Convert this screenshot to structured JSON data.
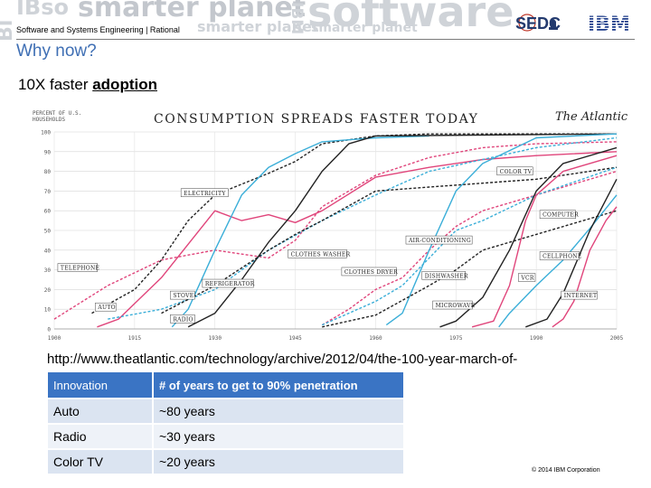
{
  "header": {
    "watermark": [
      "smarter planet",
      "software",
      "IBM"
    ],
    "division": "Software and Systems Engineering | Rational",
    "sedc_logo": "SEDC",
    "ibm_logo": "IBM"
  },
  "slide": {
    "title": "Why now?",
    "subtitle_prefix": "10X faster ",
    "subtitle_emphasis": "adoption",
    "url": "http://www.theatlantic.com/technology/archive/2012/04/the-100-year-march-of-"
  },
  "table": {
    "headers": [
      "Innovation",
      "# of years to get to 90% penetration"
    ],
    "rows": [
      [
        "Auto",
        "~80 years"
      ],
      [
        "Radio",
        "~30 years"
      ],
      [
        "Color TV",
        "~20 years"
      ]
    ]
  },
  "footer": {
    "copyright": "© 2014 IBM Corporation"
  },
  "chart_data": {
    "type": "line",
    "title": "CONSUMPTION SPREADS FASTER TODAY",
    "source_logo": "The Atlantic",
    "ylabel": "PERCENT OF U.S. HOUSEHOLDS",
    "xlim": [
      1900,
      2005
    ],
    "ylim": [
      0,
      100
    ],
    "x_ticks": [
      1900,
      1915,
      1930,
      1945,
      1960,
      1975,
      1990,
      2005
    ],
    "y_ticks": [
      0,
      10,
      20,
      30,
      40,
      50,
      60,
      70,
      80,
      90,
      100
    ],
    "grid": true,
    "series": [
      {
        "name": "TELEPHONE",
        "color": "#e0457b",
        "dash": "3,2",
        "x": [
          1900,
          1910,
          1920,
          1930,
          1940,
          1945,
          1950,
          1960,
          1970,
          1980,
          1990,
          2005
        ],
        "y": [
          5,
          22,
          35,
          40,
          36,
          45,
          62,
          78,
          87,
          92,
          94,
          95
        ]
      },
      {
        "name": "ELECTRICITY",
        "color": "#222222",
        "dash": "3,2",
        "x": [
          1907,
          1915,
          1920,
          1925,
          1930,
          1940,
          1945,
          1950,
          1960,
          1970,
          2005
        ],
        "y": [
          8,
          20,
          35,
          55,
          68,
          79,
          85,
          94,
          98,
          99,
          99
        ]
      },
      {
        "name": "AUTO",
        "color": "#e0457b",
        "dash": "",
        "x": [
          1908,
          1912,
          1920,
          1930,
          1935,
          1940,
          1945,
          1950,
          1960,
          1970,
          1980,
          1990,
          2005
        ],
        "y": [
          1,
          5,
          26,
          60,
          55,
          58,
          54,
          60,
          77,
          82,
          86,
          88,
          90
        ]
      },
      {
        "name": "RADIO",
        "color": "#3aaed8",
        "dash": "",
        "x": [
          1922,
          1925,
          1930,
          1935,
          1940,
          1945,
          1950,
          1960,
          1970
        ],
        "y": [
          1,
          10,
          40,
          68,
          82,
          89,
          95,
          97,
          98
        ]
      },
      {
        "name": "STOVE",
        "color": "#3aaed8",
        "dash": "3,2",
        "x": [
          1910,
          1920,
          1930,
          1940,
          1950,
          1960,
          1970,
          1990,
          2005
        ],
        "y": [
          5,
          10,
          20,
          40,
          55,
          68,
          80,
          92,
          97
        ]
      },
      {
        "name": "REFRIGERATOR",
        "color": "#222222",
        "dash": "",
        "x": [
          1925,
          1930,
          1935,
          1940,
          1945,
          1950,
          1955,
          1960,
          2005
        ],
        "y": [
          1,
          8,
          25,
          44,
          60,
          80,
          94,
          98,
          99
        ]
      },
      {
        "name": "CLOTHES WASHER",
        "color": "#222222",
        "dash": "3,2",
        "x": [
          1920,
          1930,
          1940,
          1945,
          1950,
          1960,
          1970,
          1980,
          1990,
          2005
        ],
        "y": [
          8,
          22,
          40,
          48,
          55,
          70,
          72,
          74,
          76,
          82
        ]
      },
      {
        "name": "CLOTHES DRYER",
        "color": "#e0457b",
        "dash": "3,2",
        "x": [
          1950,
          1955,
          1960,
          1965,
          1970,
          1975,
          1980,
          1990,
          2005
        ],
        "y": [
          2,
          10,
          20,
          26,
          40,
          52,
          60,
          68,
          80
        ]
      },
      {
        "name": "AIR-CONDITIONING",
        "color": "#3aaed8",
        "dash": "3,2",
        "x": [
          1950,
          1955,
          1960,
          1965,
          1970,
          1975,
          1980,
          1990,
          2005
        ],
        "y": [
          2,
          8,
          14,
          22,
          36,
          50,
          55,
          68,
          82
        ]
      },
      {
        "name": "COLOR TV",
        "color": "#3aaed8",
        "dash": "",
        "x": [
          1962,
          1965,
          1970,
          1975,
          1980,
          1990,
          2005
        ],
        "y": [
          2,
          8,
          40,
          70,
          84,
          97,
          99
        ]
      },
      {
        "name": "DISHWASHER",
        "color": "#222222",
        "dash": "3,2",
        "x": [
          1950,
          1960,
          1970,
          1975,
          1980,
          1990,
          2005
        ],
        "y": [
          1,
          7,
          22,
          30,
          40,
          48,
          60
        ]
      },
      {
        "name": "MICROWAVE",
        "color": "#222222",
        "dash": "",
        "x": [
          1972,
          1975,
          1980,
          1985,
          1990,
          1995,
          2005
        ],
        "y": [
          1,
          4,
          16,
          40,
          70,
          84,
          92
        ]
      },
      {
        "name": "VCR",
        "color": "#e0457b",
        "dash": "",
        "x": [
          1978,
          1982,
          1985,
          1988,
          1990,
          1995,
          2005
        ],
        "y": [
          1,
          4,
          22,
          55,
          68,
          80,
          88
        ]
      },
      {
        "name": "COMPUTER",
        "color": "#3aaed8",
        "dash": "",
        "x": [
          1983,
          1985,
          1990,
          1995,
          2000,
          2005
        ],
        "y": [
          1,
          8,
          22,
          35,
          51,
          68
        ]
      },
      {
        "name": "CELLPHONE",
        "color": "#222222",
        "dash": "",
        "x": [
          1988,
          1992,
          1995,
          2000,
          2005
        ],
        "y": [
          1,
          5,
          18,
          50,
          76
        ]
      },
      {
        "name": "INTERNET",
        "color": "#e0457b",
        "dash": "",
        "x": [
          1993,
          1995,
          1997,
          2000,
          2003,
          2005
        ],
        "y": [
          1,
          5,
          14,
          40,
          55,
          62
        ]
      }
    ],
    "labels": [
      {
        "text": "TELEPHONE",
        "x": 1901,
        "y": 30
      },
      {
        "text": "ELECTRICITY",
        "x": 1924,
        "y": 68
      },
      {
        "text": "AUTO",
        "x": 1908,
        "y": 10
      },
      {
        "text": "RADIO",
        "x": 1922,
        "y": 4
      },
      {
        "text": "STOVE",
        "x": 1922,
        "y": 16
      },
      {
        "text": "REFRIGERATOR",
        "x": 1928,
        "y": 22
      },
      {
        "text": "CLOTHES WASHER",
        "x": 1944,
        "y": 37
      },
      {
        "text": "CLOTHES DRYER",
        "x": 1954,
        "y": 28
      },
      {
        "text": "AIR-CONDITIONING",
        "x": 1966,
        "y": 44
      },
      {
        "text": "COLOR TV",
        "x": 1983,
        "y": 79
      },
      {
        "text": "DISHWASHER",
        "x": 1969,
        "y": 26
      },
      {
        "text": "MICROWAVE",
        "x": 1971,
        "y": 11
      },
      {
        "text": "VCR",
        "x": 1987,
        "y": 25
      },
      {
        "text": "COMPUTER",
        "x": 1991,
        "y": 57
      },
      {
        "text": "CELLPHONE",
        "x": 1991,
        "y": 36
      },
      {
        "text": "INTERNET",
        "x": 1995,
        "y": 16
      }
    ]
  }
}
